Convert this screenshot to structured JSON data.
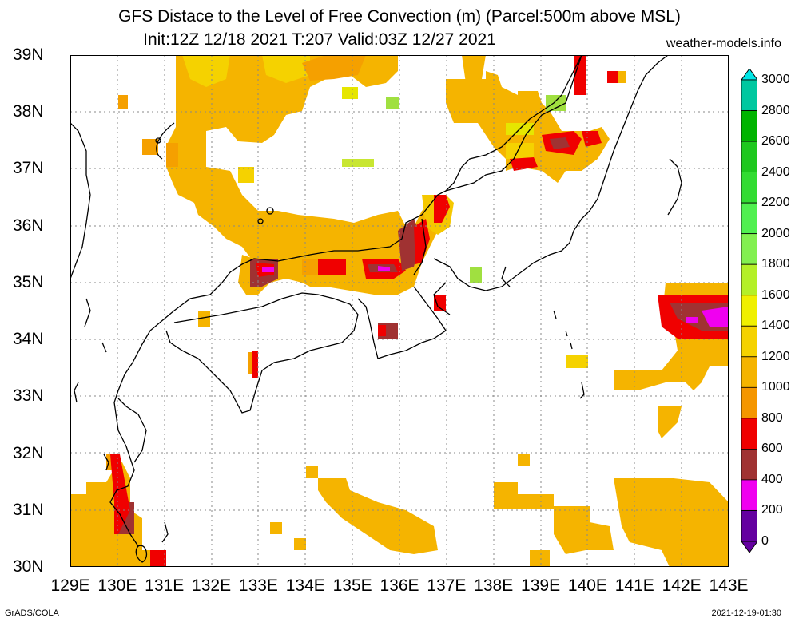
{
  "title_line1": "GFS Distace to the Level of Free Convection (m) (Parcel:500m above MSL)",
  "title_line2": "Init:12Z 12/18 2021 T:207 Valid:03Z 12/27 2021",
  "site": "weather-models.info",
  "footer_left": "GrADS/COLA",
  "footer_right": "2021-12-19-01:30",
  "lat_labels": [
    "39N",
    "38N",
    "37N",
    "36N",
    "35N",
    "34N",
    "33N",
    "32N",
    "31N",
    "30N"
  ],
  "lon_labels": [
    "129E",
    "130E",
    "131E",
    "132E",
    "133E",
    "134E",
    "135E",
    "136E",
    "137E",
    "138E",
    "139E",
    "140E",
    "141E",
    "142E",
    "143E"
  ],
  "colorbar": {
    "labels": [
      "3000",
      "2800",
      "2600",
      "2400",
      "2200",
      "2000",
      "1800",
      "1600",
      "1400",
      "1200",
      "1000",
      "800",
      "600",
      "400",
      "200",
      "0"
    ],
    "colors": [
      "#00e6e6",
      "#00c8a0",
      "#00b400",
      "#1ec81e",
      "#32dc32",
      "#50f050",
      "#82f050",
      "#b4f028",
      "#f0f000",
      "#f5d200",
      "#f5b400",
      "#f59600",
      "#f00000",
      "#a03232",
      "#f000f0",
      "#6400a0"
    ]
  }
}
